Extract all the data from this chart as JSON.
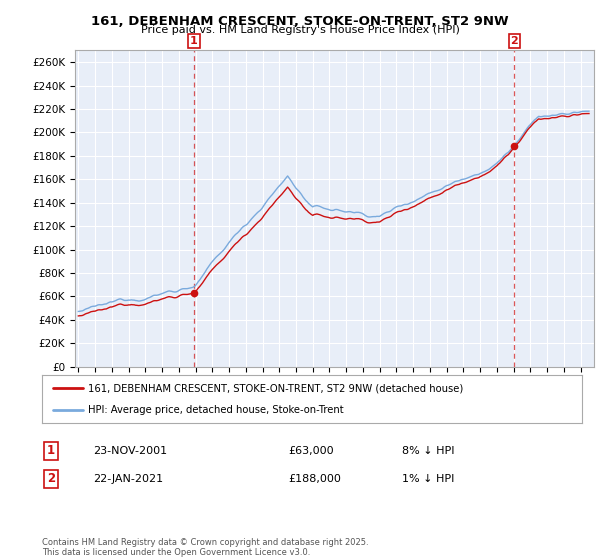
{
  "title": "161, DEBENHAM CRESCENT, STOKE-ON-TRENT, ST2 9NW",
  "subtitle": "Price paid vs. HM Land Registry's House Price Index (HPI)",
  "ylabel_ticks": [
    "£0",
    "£20K",
    "£40K",
    "£60K",
    "£80K",
    "£100K",
    "£120K",
    "£140K",
    "£160K",
    "£180K",
    "£200K",
    "£220K",
    "£240K",
    "£260K"
  ],
  "ytick_values": [
    0,
    20000,
    40000,
    60000,
    80000,
    100000,
    120000,
    140000,
    160000,
    180000,
    200000,
    220000,
    240000,
    260000
  ],
  "ylim": [
    0,
    270000
  ],
  "xlim_start": 1994.8,
  "xlim_end": 2025.8,
  "sale1_date": 2001.9,
  "sale1_price": 63000,
  "sale1_label": "1",
  "sale2_date": 2021.05,
  "sale2_price": 188000,
  "sale2_label": "2",
  "legend_line1": "161, DEBENHAM CRESCENT, STOKE-ON-TRENT, ST2 9NW (detached house)",
  "legend_line2": "HPI: Average price, detached house, Stoke-on-Trent",
  "table_row1": [
    "1",
    "23-NOV-2001",
    "£63,000",
    "8% ↓ HPI"
  ],
  "table_row2": [
    "2",
    "22-JAN-2021",
    "£188,000",
    "1% ↓ HPI"
  ],
  "footer": "Contains HM Land Registry data © Crown copyright and database right 2025.\nThis data is licensed under the Open Government Licence v3.0.",
  "hpi_color": "#7aaadd",
  "price_color": "#cc1111",
  "vline_color": "#cc1111",
  "bg_color": "#ffffff",
  "chart_bg": "#e8eef8",
  "grid_color": "#ffffff"
}
